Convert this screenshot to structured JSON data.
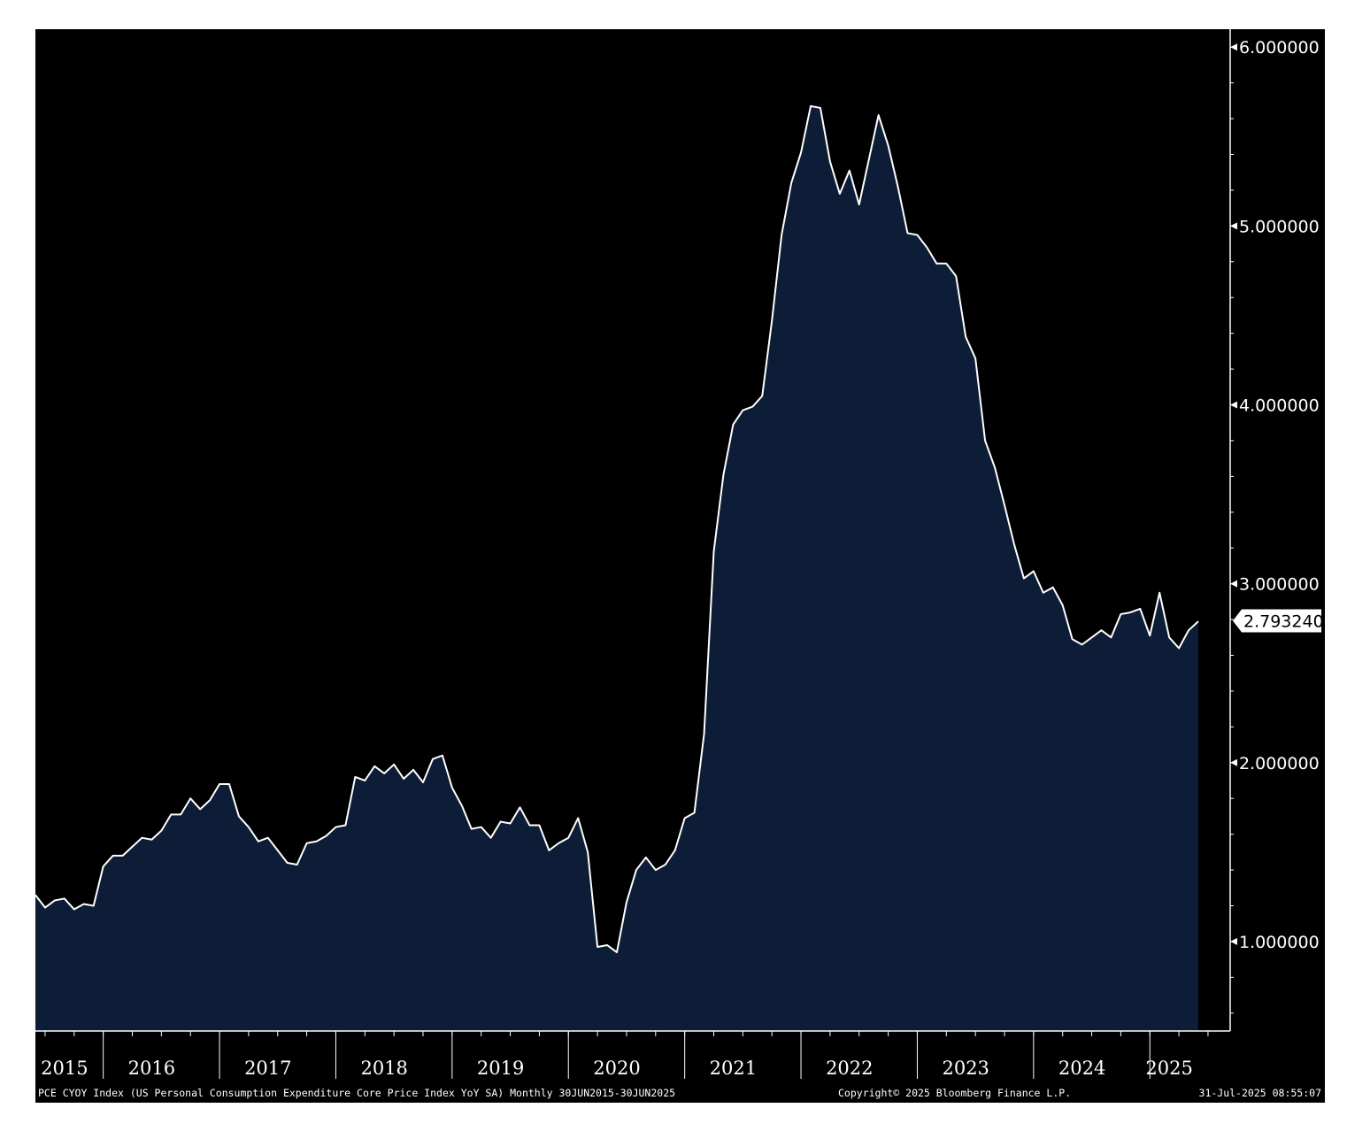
{
  "colors": {
    "background": "#000000",
    "area_fill": "#0d1d38",
    "line": "#ffffff",
    "axis": "#ffffff",
    "last_value_box": "#ffffff",
    "last_value_text": "#000000"
  },
  "footer": {
    "left": "PCE CYOY Index (US Personal Consumption Expenditure Core Price Index YoY SA)  Monthly 30JUN2015-30JUN2025",
    "middle": "Copyright© 2025 Bloomberg Finance L.P.",
    "right": "31-Jul-2025 08:55:07"
  },
  "chart_data": {
    "type": "area",
    "title": "",
    "xlabel": "",
    "ylabel": "",
    "legend": "none",
    "grid": false,
    "y_axis_side": "right",
    "ylim": [
      0.5,
      6.1
    ],
    "yticks": [
      {
        "value": 1,
        "label": "1.000000"
      },
      {
        "value": 2,
        "label": "2.000000"
      },
      {
        "value": 3,
        "label": "3.000000"
      },
      {
        "value": 4,
        "label": "4.000000"
      },
      {
        "value": 5,
        "label": "5.000000"
      },
      {
        "value": 6,
        "label": "6.000000"
      }
    ],
    "xlim": [
      "2015-06",
      "2025-08"
    ],
    "xticks": [
      {
        "label": "2015",
        "x": "2015-09"
      },
      {
        "label": "2016",
        "x": "2016-06"
      },
      {
        "label": "2017",
        "x": "2017-06"
      },
      {
        "label": "2018",
        "x": "2018-06"
      },
      {
        "label": "2019",
        "x": "2019-06"
      },
      {
        "label": "2020",
        "x": "2020-06"
      },
      {
        "label": "2021",
        "x": "2021-06"
      },
      {
        "label": "2022",
        "x": "2022-06"
      },
      {
        "label": "2023",
        "x": "2023-06"
      },
      {
        "label": "2024",
        "x": "2024-06"
      },
      {
        "label": "2025",
        "x": "2025-03"
      }
    ],
    "year_boundaries": [
      "2016-01",
      "2017-01",
      "2018-01",
      "2019-01",
      "2020-01",
      "2021-01",
      "2022-01",
      "2023-01",
      "2024-01",
      "2025-01"
    ],
    "last_value": {
      "value": 2.79324,
      "label": "2.793240"
    },
    "series": [
      {
        "name": "PCE CYOY Index",
        "x": [
          "2015-06",
          "2015-07",
          "2015-08",
          "2015-09",
          "2015-10",
          "2015-11",
          "2015-12",
          "2016-01",
          "2016-02",
          "2016-03",
          "2016-04",
          "2016-05",
          "2016-06",
          "2016-07",
          "2016-08",
          "2016-09",
          "2016-10",
          "2016-11",
          "2016-12",
          "2017-01",
          "2017-02",
          "2017-03",
          "2017-04",
          "2017-05",
          "2017-06",
          "2017-07",
          "2017-08",
          "2017-09",
          "2017-10",
          "2017-11",
          "2017-12",
          "2018-01",
          "2018-02",
          "2018-03",
          "2018-04",
          "2018-05",
          "2018-06",
          "2018-07",
          "2018-08",
          "2018-09",
          "2018-10",
          "2018-11",
          "2018-12",
          "2019-01",
          "2019-02",
          "2019-03",
          "2019-04",
          "2019-05",
          "2019-06",
          "2019-07",
          "2019-08",
          "2019-09",
          "2019-10",
          "2019-11",
          "2019-12",
          "2020-01",
          "2020-02",
          "2020-03",
          "2020-04",
          "2020-05",
          "2020-06",
          "2020-07",
          "2020-08",
          "2020-09",
          "2020-10",
          "2020-11",
          "2020-12",
          "2021-01",
          "2021-02",
          "2021-03",
          "2021-04",
          "2021-05",
          "2021-06",
          "2021-07",
          "2021-08",
          "2021-09",
          "2021-10",
          "2021-11",
          "2021-12",
          "2022-01",
          "2022-02",
          "2022-03",
          "2022-04",
          "2022-05",
          "2022-06",
          "2022-07",
          "2022-08",
          "2022-09",
          "2022-10",
          "2022-11",
          "2022-12",
          "2023-01",
          "2023-02",
          "2023-03",
          "2023-04",
          "2023-05",
          "2023-06",
          "2023-07",
          "2023-08",
          "2023-09",
          "2023-10",
          "2023-11",
          "2023-12",
          "2024-01",
          "2024-02",
          "2024-03",
          "2024-04",
          "2024-05",
          "2024-06",
          "2024-07",
          "2024-08",
          "2024-09",
          "2024-10",
          "2024-11",
          "2024-12",
          "2025-01",
          "2025-02",
          "2025-03",
          "2025-04",
          "2025-05",
          "2025-06"
        ],
        "values": [
          1.26,
          1.19,
          1.23,
          1.24,
          1.18,
          1.21,
          1.2,
          1.42,
          1.48,
          1.48,
          1.53,
          1.58,
          1.57,
          1.62,
          1.71,
          1.71,
          1.8,
          1.74,
          1.79,
          1.88,
          1.88,
          1.7,
          1.64,
          1.56,
          1.58,
          1.51,
          1.44,
          1.43,
          1.55,
          1.56,
          1.59,
          1.64,
          1.65,
          1.92,
          1.9,
          1.98,
          1.94,
          1.99,
          1.91,
          1.96,
          1.89,
          2.02,
          2.04,
          1.86,
          1.76,
          1.63,
          1.64,
          1.58,
          1.67,
          1.66,
          1.75,
          1.65,
          1.65,
          1.51,
          1.55,
          1.58,
          1.69,
          1.5,
          0.97,
          0.98,
          0.94,
          1.22,
          1.4,
          1.47,
          1.4,
          1.43,
          1.51,
          1.69,
          1.72,
          2.16,
          3.18,
          3.61,
          3.89,
          3.97,
          3.99,
          4.05,
          4.47,
          4.95,
          5.24,
          5.41,
          5.67,
          5.66,
          5.36,
          5.18,
          5.31,
          5.12,
          5.37,
          5.62,
          5.45,
          5.22,
          4.96,
          4.95,
          4.88,
          4.79,
          4.79,
          4.72,
          4.38,
          4.26,
          3.8,
          3.65,
          3.44,
          3.22,
          3.03,
          3.07,
          2.95,
          2.98,
          2.88,
          2.69,
          2.66,
          2.7,
          2.74,
          2.7,
          2.83,
          2.84,
          2.86,
          2.71,
          2.95,
          2.7,
          2.64,
          2.74,
          2.79
        ]
      }
    ]
  }
}
